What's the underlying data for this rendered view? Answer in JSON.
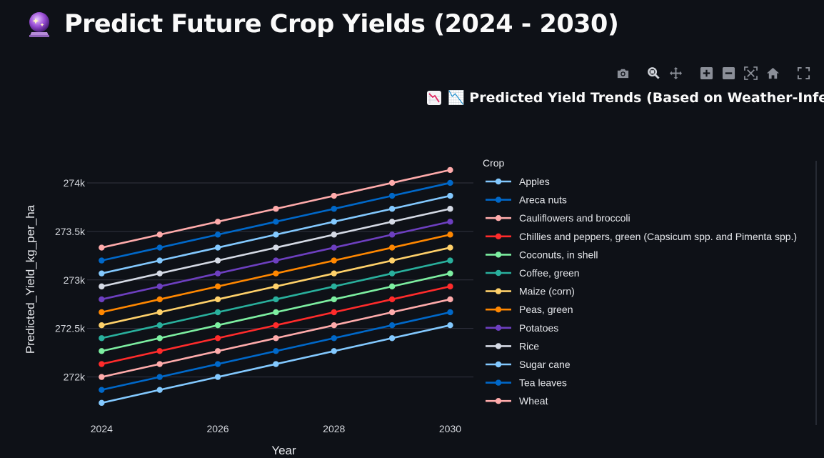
{
  "page": {
    "title": "Predict Future Crop Yields (2024 - 2030)",
    "title_icon": "crystal-ball-icon"
  },
  "toolbar": {
    "buttons": [
      {
        "name": "camera-icon",
        "label": "Download plot as a png"
      },
      {
        "name": "zoom-icon",
        "label": "Zoom"
      },
      {
        "name": "pan-icon",
        "label": "Pan"
      },
      {
        "name": "zoom-in-icon",
        "label": "Zoom in"
      },
      {
        "name": "zoom-out-icon",
        "label": "Zoom out"
      },
      {
        "name": "autoscale-icon",
        "label": "Autoscale"
      },
      {
        "name": "reset-axes-icon",
        "label": "Reset axes"
      },
      {
        "name": "fullscreen-icon",
        "label": "Fullscreen"
      }
    ]
  },
  "chart_data": {
    "type": "line",
    "title": "📉 Predicted Yield Trends (Based on Weather-Inferred NDVI)",
    "title_icon": "chart-decreasing-icon",
    "xlabel": "Year",
    "ylabel": "Predicted_Yield_kg_per_ha",
    "x": [
      2024,
      2025,
      2026,
      2027,
      2028,
      2029,
      2030
    ],
    "xticks": [
      2024,
      2026,
      2028,
      2030
    ],
    "xtick_labels": [
      "2024",
      "2026",
      "2028",
      "2030"
    ],
    "xlim": [
      2023.75,
      2030.4
    ],
    "ylim": [
      271570,
      274250
    ],
    "yticks": [
      272000,
      272500,
      273000,
      273500,
      274000
    ],
    "ytick_labels": [
      "272k",
      "272.5k",
      "273k",
      "273.5k",
      "274k"
    ],
    "grid": true,
    "legend_title": "Crop",
    "legend_position": "right",
    "series": [
      {
        "name": "Apples",
        "color": "#83c9ff",
        "values": [
          271733,
          271867,
          272000,
          272133,
          272267,
          272400,
          272533
        ]
      },
      {
        "name": "Areca nuts",
        "color": "#0068c9",
        "values": [
          273200,
          273333,
          273467,
          273600,
          273733,
          273867,
          274000
        ]
      },
      {
        "name": "Cauliflowers and broccoli",
        "color": "#ffabab",
        "values": [
          272000,
          272133,
          272267,
          272400,
          272533,
          272667,
          272800
        ]
      },
      {
        "name": "Chillies and peppers, green (Capsicum spp. and Pimenta spp.)",
        "color": "#ff2b2b",
        "values": [
          272133,
          272267,
          272400,
          272533,
          272667,
          272800,
          272933
        ]
      },
      {
        "name": "Coconuts, in shell",
        "color": "#7defa1",
        "values": [
          272267,
          272400,
          272533,
          272667,
          272800,
          272933,
          273067
        ]
      },
      {
        "name": "Coffee, green",
        "color": "#29b09d",
        "values": [
          272400,
          272533,
          272667,
          272800,
          272933,
          273067,
          273200
        ]
      },
      {
        "name": "Maize (corn)",
        "color": "#ffd16a",
        "values": [
          272533,
          272667,
          272800,
          272933,
          273067,
          273200,
          273333
        ]
      },
      {
        "name": "Peas, green",
        "color": "#ff8700",
        "values": [
          272667,
          272800,
          272933,
          273067,
          273200,
          273333,
          273467
        ]
      },
      {
        "name": "Potatoes",
        "color": "#6d3fc0",
        "values": [
          272800,
          272933,
          273067,
          273200,
          273333,
          273467,
          273600
        ]
      },
      {
        "name": "Rice",
        "color": "#d5dae5",
        "values": [
          272933,
          273067,
          273200,
          273333,
          273467,
          273600,
          273733
        ]
      },
      {
        "name": "Sugar cane",
        "color": "#83c9ff",
        "values": [
          273067,
          273200,
          273333,
          273467,
          273600,
          273733,
          273867
        ]
      },
      {
        "name": "Tea leaves",
        "color": "#0068c9",
        "values": [
          271867,
          272000,
          272133,
          272267,
          272400,
          272533,
          272667
        ]
      },
      {
        "name": "Wheat",
        "color": "#ffabab",
        "values": [
          273333,
          273467,
          273600,
          273733,
          273867,
          274000,
          274133
        ]
      }
    ]
  },
  "colors": {
    "background": "#0e1117",
    "gridline": "#31333f",
    "text": "#fafafa",
    "toolbar_icon": "#8b8f98"
  }
}
